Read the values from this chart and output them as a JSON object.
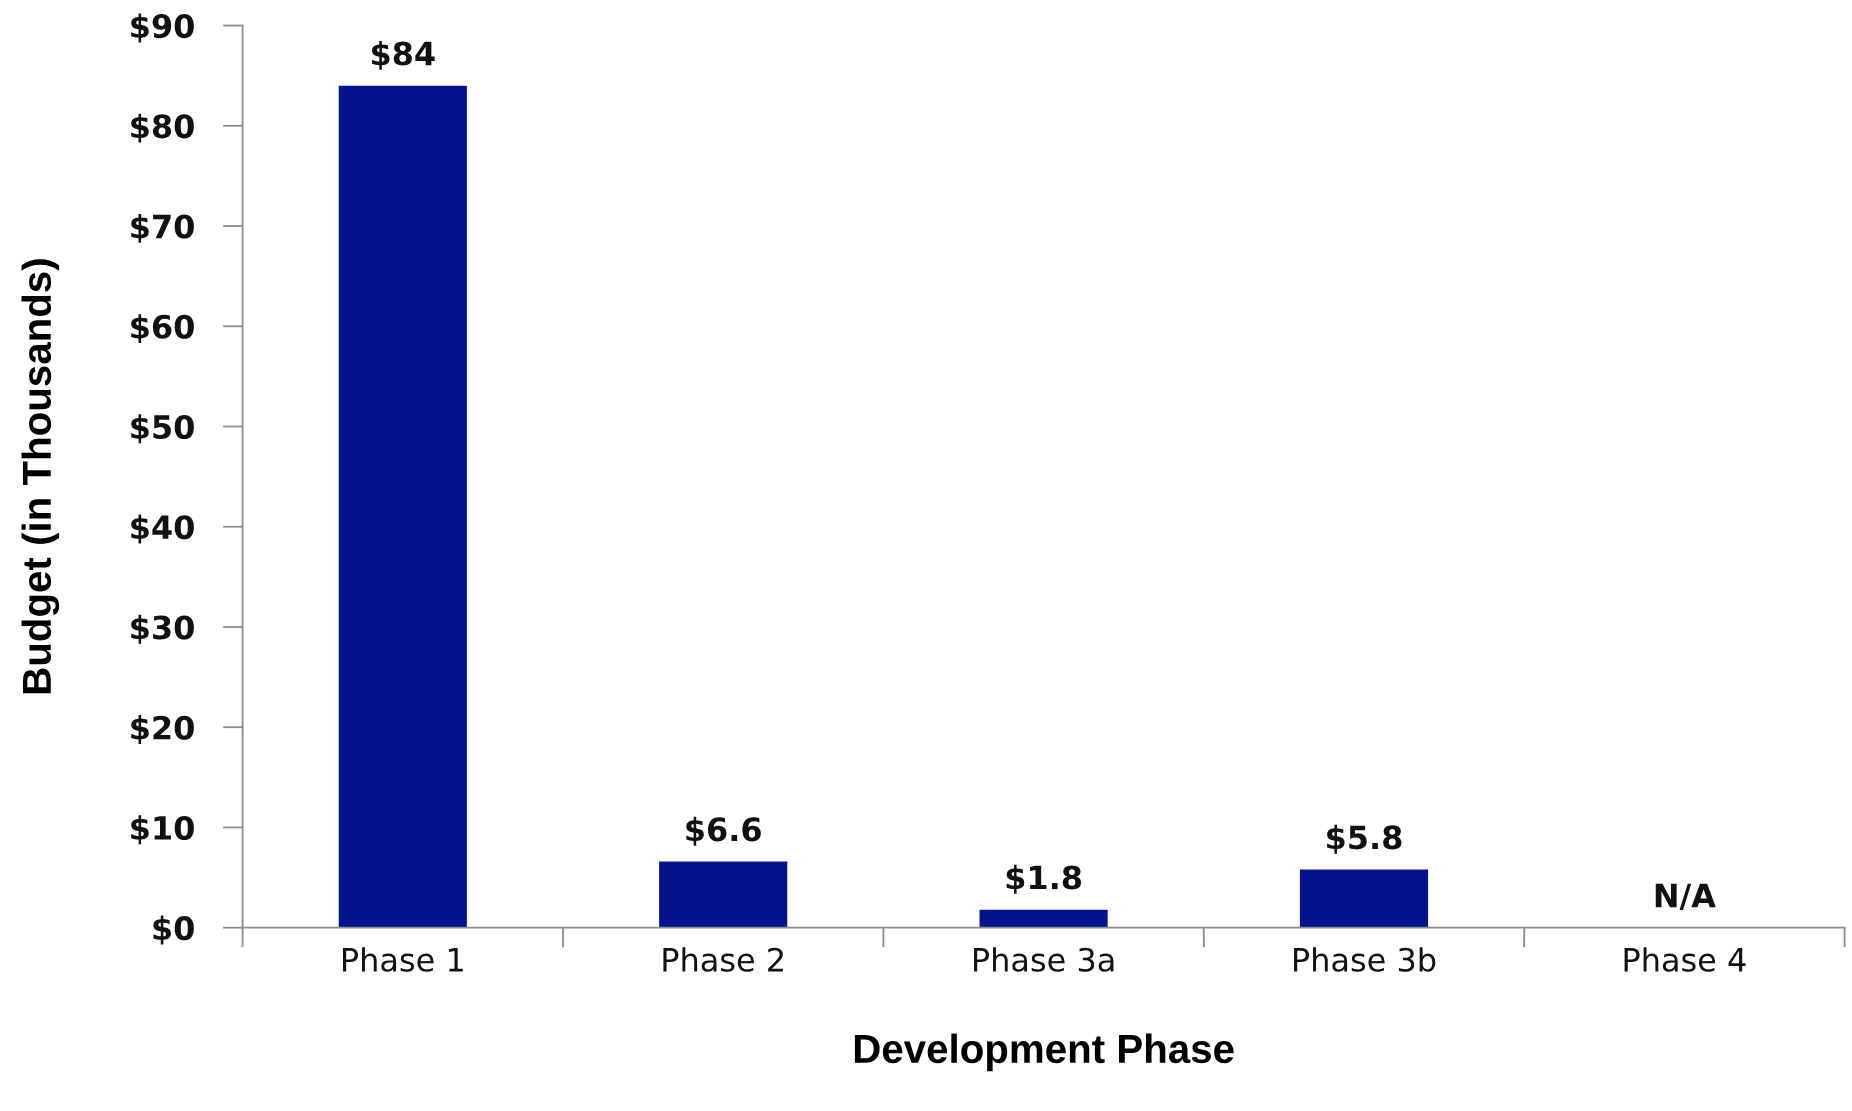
{
  "chart_data": {
    "type": "bar",
    "xlabel": "Development Phase",
    "ylabel": "Budget (in Thousands)",
    "categories": [
      "Phase 1",
      "Phase 2",
      "Phase 3a",
      "Phase 3b",
      "Phase 4"
    ],
    "values": [
      84,
      6.6,
      1.8,
      5.8,
      null
    ],
    "value_labels": [
      "$84",
      "$6.6",
      "$1.8",
      "$5.8",
      "N/A"
    ],
    "color": "#06148c",
    "ylim": [
      0,
      90
    ],
    "yticks": [
      {
        "value": 0,
        "label": "$0"
      },
      {
        "value": 10,
        "label": "$10"
      },
      {
        "value": 20,
        "label": "$20"
      },
      {
        "value": 30,
        "label": "$30"
      },
      {
        "value": 40,
        "label": "$40"
      },
      {
        "value": 50,
        "label": "$50"
      },
      {
        "value": 60,
        "label": "$60"
      },
      {
        "value": 70,
        "label": "$70"
      },
      {
        "value": 80,
        "label": "$80"
      },
      {
        "value": 90,
        "label": "$90"
      }
    ],
    "grid": false,
    "legend": false
  }
}
